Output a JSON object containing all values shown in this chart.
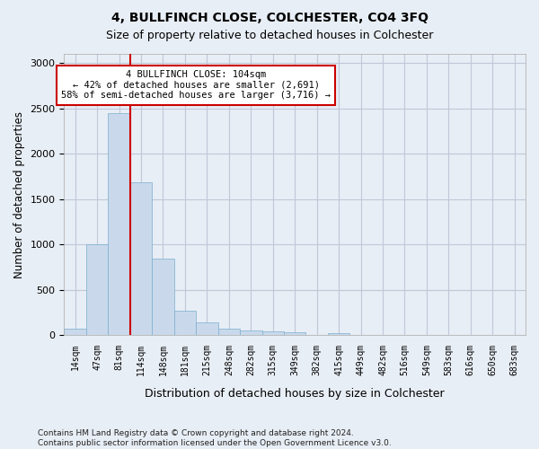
{
  "title": "4, BULLFINCH CLOSE, COLCHESTER, CO4 3FQ",
  "subtitle": "Size of property relative to detached houses in Colchester",
  "xlabel": "Distribution of detached houses by size in Colchester",
  "ylabel": "Number of detached properties",
  "bin_labels": [
    "14sqm",
    "47sqm",
    "81sqm",
    "114sqm",
    "148sqm",
    "181sqm",
    "215sqm",
    "248sqm",
    "282sqm",
    "315sqm",
    "349sqm",
    "382sqm",
    "415sqm",
    "449sqm",
    "482sqm",
    "516sqm",
    "549sqm",
    "583sqm",
    "616sqm",
    "650sqm",
    "683sqm"
  ],
  "bar_values": [
    75,
    1000,
    2450,
    1680,
    840,
    270,
    140,
    70,
    55,
    45,
    30,
    0,
    20,
    0,
    0,
    0,
    0,
    0,
    0,
    0,
    0
  ],
  "bar_color": "#c9d9eb",
  "bar_edge_color": "#7aaed0",
  "grid_color": "#c0c8d8",
  "background_color": "#e8eef5",
  "vline_pos": 2.5,
  "vline_color": "#cc0000",
  "annotation_text": "4 BULLFINCH CLOSE: 104sqm\n← 42% of detached houses are smaller (2,691)\n58% of semi-detached houses are larger (3,716) →",
  "annotation_box_facecolor": "#ffffff",
  "annotation_box_edgecolor": "#cc0000",
  "ylim": [
    0,
    3100
  ],
  "yticks": [
    0,
    500,
    1000,
    1500,
    2000,
    2500,
    3000
  ],
  "footer_line1": "Contains HM Land Registry data © Crown copyright and database right 2024.",
  "footer_line2": "Contains public sector information licensed under the Open Government Licence v3.0."
}
